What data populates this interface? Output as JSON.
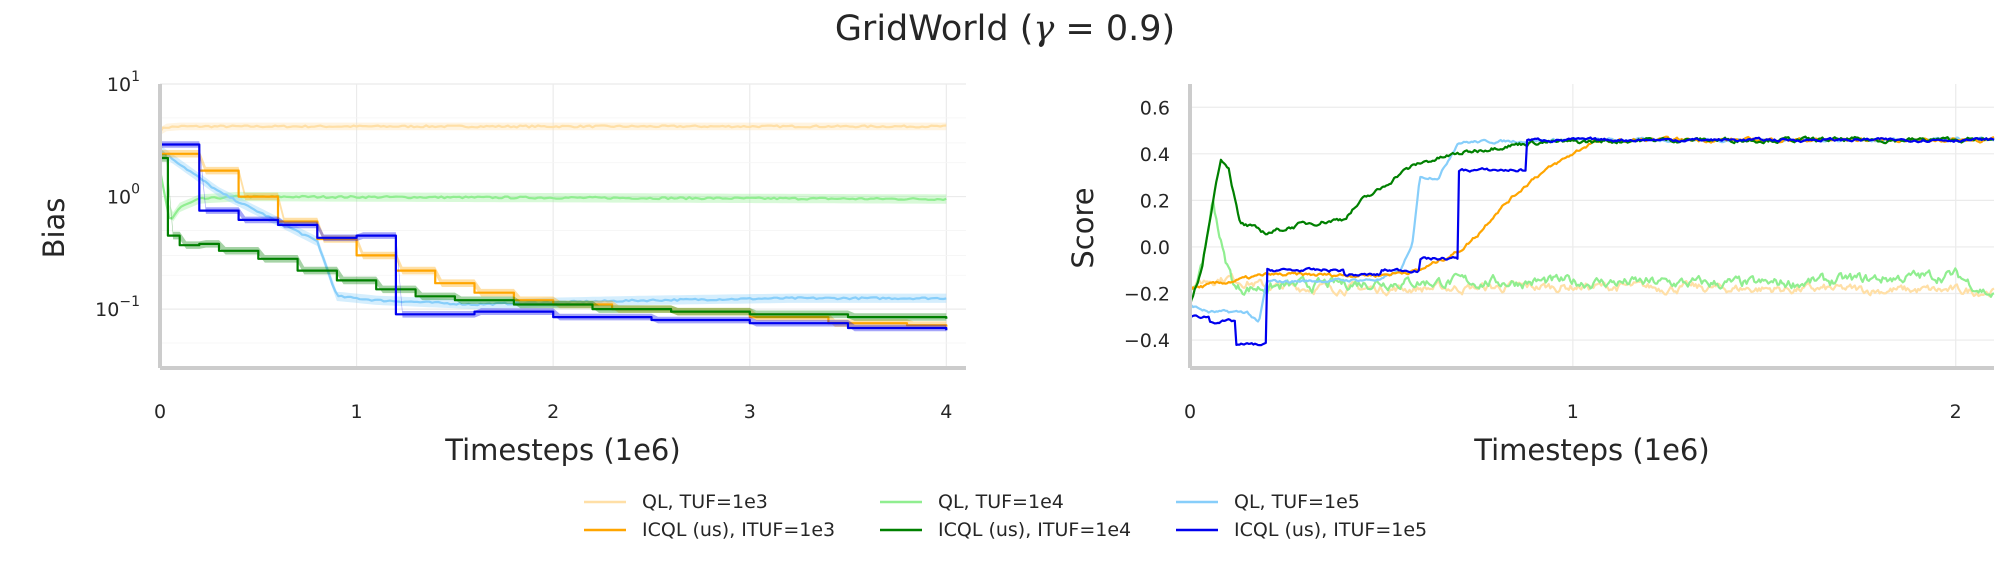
{
  "figure_title": "GridWorld (γ = 0.9)",
  "title_parts": {
    "text": "GridWorld (",
    "gamma": "γ",
    "eq": " = 0.9)"
  },
  "colors": {
    "QL, TUF=1e3": "#ffdfa6",
    "ICQL (us), ITUF=1e3": "#ffa500",
    "QL, TUF=1e4": "#90ee90",
    "ICQL (us), ITUF=1e4": "#008000",
    "QL, TUF=1e5": "#87cefa",
    "ICQL (us), ITUF=1e5": "#0000ee"
  },
  "legend": [
    "QL, TUF=1e3",
    "ICQL (us), ITUF=1e3",
    "QL, TUF=1e4",
    "ICQL (us), ITUF=1e4",
    "QL, TUF=1e5",
    "ICQL (us), ITUF=1e5"
  ],
  "chart_data": [
    {
      "type": "line",
      "yscale": "log",
      "xlabel": "Timesteps (1e6)",
      "ylabel": "Bias",
      "xlim": [
        0,
        4.1
      ],
      "ylim": [
        0.03,
        10
      ],
      "xticks": [
        0,
        1,
        2,
        3,
        4
      ],
      "yticks": [
        {
          "value": 10,
          "base": "10",
          "exp": "1"
        },
        {
          "value": 1,
          "base": "10",
          "exp": "0"
        },
        {
          "value": 0.1,
          "base": "10",
          "exp": "−1"
        }
      ],
      "series": [
        {
          "name": "QL, TUF=1e3",
          "band": 1.08,
          "points": [
            [
              0,
              3.8
            ],
            [
              0.02,
              4.1
            ],
            [
              0.1,
              4.2
            ],
            [
              4,
              4.2
            ]
          ]
        },
        {
          "name": "QL, TUF=1e4",
          "band": 1.1,
          "points": [
            [
              0,
              1.7
            ],
            [
              0.05,
              0.6
            ],
            [
              0.1,
              0.8
            ],
            [
              0.2,
              0.95
            ],
            [
              0.4,
              1.0
            ],
            [
              4,
              0.95
            ]
          ]
        },
        {
          "name": "QL, TUF=1e5",
          "band": 1.1,
          "points": [
            [
              0,
              2.6
            ],
            [
              0.3,
              1.1
            ],
            [
              0.8,
              0.4
            ],
            [
              0.9,
              0.13
            ],
            [
              1.1,
              0.12
            ],
            [
              1.6,
              0.11
            ],
            [
              2.0,
              0.115
            ],
            [
              2.5,
              0.12
            ],
            [
              3.2,
              0.125
            ],
            [
              4,
              0.125
            ]
          ]
        },
        {
          "name": "ICQL (us), ITUF=1e3",
          "band": 1.08,
          "step": true,
          "points": [
            [
              0,
              2.4
            ],
            [
              0.2,
              1.7
            ],
            [
              0.4,
              1.0
            ],
            [
              0.6,
              0.6
            ],
            [
              0.8,
              0.42
            ],
            [
              1.0,
              0.3
            ],
            [
              1.2,
              0.22
            ],
            [
              1.4,
              0.17
            ],
            [
              1.6,
              0.14
            ],
            [
              1.8,
              0.12
            ],
            [
              2.0,
              0.11
            ],
            [
              2.3,
              0.1
            ],
            [
              2.6,
              0.095
            ],
            [
              3.0,
              0.085
            ],
            [
              3.4,
              0.075
            ],
            [
              3.8,
              0.072
            ],
            [
              4.0,
              0.07
            ]
          ]
        },
        {
          "name": "ICQL (us), ITUF=1e4",
          "band": 1.08,
          "step": true,
          "points": [
            [
              0,
              2.2
            ],
            [
              0.04,
              0.45
            ],
            [
              0.1,
              0.37
            ],
            [
              0.2,
              0.38
            ],
            [
              0.3,
              0.33
            ],
            [
              0.5,
              0.28
            ],
            [
              0.7,
              0.22
            ],
            [
              0.9,
              0.18
            ],
            [
              1.1,
              0.15
            ],
            [
              1.3,
              0.13
            ],
            [
              1.5,
              0.12
            ],
            [
              1.8,
              0.11
            ],
            [
              2.2,
              0.1
            ],
            [
              2.6,
              0.095
            ],
            [
              3.0,
              0.09
            ],
            [
              3.5,
              0.085
            ],
            [
              4.0,
              0.082
            ]
          ]
        },
        {
          "name": "ICQL (us), ITUF=1e5",
          "band": 1.07,
          "step": true,
          "points": [
            [
              0,
              2.9
            ],
            [
              0.2,
              2.9
            ],
            [
              0.2,
              0.75
            ],
            [
              0.4,
              0.75
            ],
            [
              0.4,
              0.62
            ],
            [
              0.6,
              0.62
            ],
            [
              0.6,
              0.56
            ],
            [
              0.8,
              0.56
            ],
            [
              0.8,
              0.43
            ],
            [
              1.0,
              0.43
            ],
            [
              1.0,
              0.45
            ],
            [
              1.2,
              0.45
            ],
            [
              1.2,
              0.09
            ],
            [
              1.6,
              0.09
            ],
            [
              1.6,
              0.095
            ],
            [
              2.0,
              0.095
            ],
            [
              2.0,
              0.085
            ],
            [
              2.5,
              0.085
            ],
            [
              2.5,
              0.08
            ],
            [
              3.0,
              0.08
            ],
            [
              3.0,
              0.075
            ],
            [
              3.5,
              0.075
            ],
            [
              3.5,
              0.068
            ],
            [
              4.0,
              0.065
            ]
          ]
        }
      ]
    },
    {
      "type": "line",
      "xlabel": "Timesteps (1e6)",
      "ylabel": "Score",
      "xlim": [
        0,
        2.1
      ],
      "ylim": [
        -0.52,
        0.7
      ],
      "xticks": [
        0,
        1,
        2
      ],
      "yticks": [
        {
          "value": 0.6,
          "label": "0.6"
        },
        {
          "value": 0.4,
          "label": "0.4"
        },
        {
          "value": 0.2,
          "label": "0.2"
        },
        {
          "value": 0.0,
          "label": "0.0"
        },
        {
          "value": -0.2,
          "label": "−0.2"
        },
        {
          "value": -0.4,
          "label": "−0.4"
        }
      ],
      "series": [
        {
          "name": "QL, TUF=1e3",
          "noise": 0.025,
          "points": [
            [
              0,
              -0.17
            ],
            [
              0.05,
              -0.14
            ],
            [
              0.1,
              -0.13
            ],
            [
              0.2,
              -0.17
            ],
            [
              0.5,
              -0.18
            ],
            [
              1.0,
              -0.17
            ],
            [
              1.5,
              -0.18
            ],
            [
              2.1,
              -0.19
            ]
          ]
        },
        {
          "name": "QL, TUF=1e4",
          "noise": 0.03,
          "points": [
            [
              0,
              -0.2
            ],
            [
              0.03,
              -0.1
            ],
            [
              0.06,
              0.2
            ],
            [
              0.09,
              -0.05
            ],
            [
              0.12,
              -0.18
            ],
            [
              0.5,
              -0.15
            ],
            [
              1.0,
              -0.15
            ],
            [
              1.5,
              -0.16
            ],
            [
              2.0,
              -0.12
            ],
            [
              2.1,
              -0.21
            ]
          ]
        },
        {
          "name": "QL, TUF=1e5",
          "noise": 0.008,
          "points": [
            [
              0,
              -0.25
            ],
            [
              0.05,
              -0.28
            ],
            [
              0.1,
              -0.28
            ],
            [
              0.15,
              -0.28
            ],
            [
              0.18,
              -0.33
            ],
            [
              0.2,
              -0.15
            ],
            [
              0.5,
              -0.14
            ],
            [
              0.55,
              -0.1
            ],
            [
              0.58,
              0.0
            ],
            [
              0.6,
              0.3
            ],
            [
              0.65,
              0.3
            ],
            [
              0.7,
              0.45
            ],
            [
              1.0,
              0.46
            ],
            [
              2.1,
              0.46
            ]
          ]
        },
        {
          "name": "ICQL (us), ITUF=1e3",
          "noise": 0.01,
          "points": [
            [
              0,
              -0.18
            ],
            [
              0.1,
              -0.15
            ],
            [
              0.2,
              -0.12
            ],
            [
              0.5,
              -0.12
            ],
            [
              0.6,
              -0.1
            ],
            [
              0.7,
              -0.02
            ],
            [
              0.68,
              -0.05
            ],
            [
              0.75,
              0.05
            ],
            [
              0.8,
              0.15
            ],
            [
              0.9,
              0.3
            ],
            [
              1.0,
              0.4
            ],
            [
              1.05,
              0.45
            ],
            [
              1.2,
              0.46
            ],
            [
              2.1,
              0.46
            ]
          ]
        },
        {
          "name": "ICQL (us), ITUF=1e4",
          "noise": 0.012,
          "points": [
            [
              0,
              -0.25
            ],
            [
              0.03,
              -0.1
            ],
            [
              0.06,
              0.2
            ],
            [
              0.08,
              0.38
            ],
            [
              0.1,
              0.35
            ],
            [
              0.13,
              0.1
            ],
            [
              0.2,
              0.06
            ],
            [
              0.3,
              0.1
            ],
            [
              0.4,
              0.12
            ],
            [
              0.45,
              0.2
            ],
            [
              0.5,
              0.25
            ],
            [
              0.55,
              0.32
            ],
            [
              0.6,
              0.36
            ],
            [
              0.7,
              0.4
            ],
            [
              0.8,
              0.43
            ],
            [
              0.9,
              0.45
            ],
            [
              1.0,
              0.45
            ],
            [
              1.2,
              0.46
            ],
            [
              2.1,
              0.46
            ]
          ]
        },
        {
          "name": "ICQL (us), ITUF=1e5",
          "noise": 0.008,
          "step": true,
          "points": [
            [
              0,
              -0.3
            ],
            [
              0.05,
              -0.32
            ],
            [
              0.12,
              -0.42
            ],
            [
              0.2,
              -0.42
            ],
            [
              0.2,
              -0.1
            ],
            [
              0.4,
              -0.12
            ],
            [
              0.5,
              -0.1
            ],
            [
              0.6,
              -0.05
            ],
            [
              0.7,
              -0.02
            ],
            [
              0.7,
              0.33
            ],
            [
              0.88,
              0.33
            ],
            [
              0.88,
              0.46
            ],
            [
              1.0,
              0.46
            ],
            [
              2.1,
              0.46
            ]
          ]
        }
      ]
    }
  ]
}
